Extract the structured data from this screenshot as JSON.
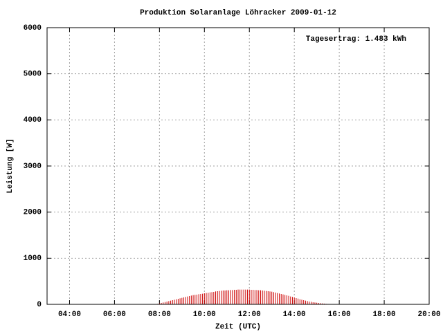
{
  "chart_data": {
    "type": "impulse",
    "title": "Produktion Solaranlage Löhracker 2009-01-12",
    "x_label": "Zeit (UTC)",
    "y_label": "Leistung [W]",
    "annotation": "Tagesertrag: 1.483 kWh",
    "color": "#cc0000",
    "grid": true,
    "xlim": [
      "03:00",
      "20:00"
    ],
    "xticks": [
      "04:00",
      "06:00",
      "08:00",
      "10:00",
      "12:00",
      "14:00",
      "16:00",
      "18:00",
      "20:00"
    ],
    "ylim": [
      0,
      6000
    ],
    "yticks": [
      0,
      1000,
      2000,
      3000,
      4000,
      5000,
      6000
    ],
    "x": [
      "07:55",
      "08:00",
      "08:05",
      "08:10",
      "08:15",
      "08:20",
      "08:25",
      "08:30",
      "08:35",
      "08:40",
      "08:45",
      "08:50",
      "08:55",
      "09:00",
      "09:05",
      "09:10",
      "09:15",
      "09:20",
      "09:25",
      "09:30",
      "09:35",
      "09:40",
      "09:45",
      "09:50",
      "09:55",
      "10:00",
      "10:05",
      "10:10",
      "10:15",
      "10:20",
      "10:25",
      "10:30",
      "10:35",
      "10:40",
      "10:45",
      "10:50",
      "10:55",
      "11:00",
      "11:05",
      "11:10",
      "11:15",
      "11:20",
      "11:25",
      "11:30",
      "11:35",
      "11:40",
      "11:45",
      "11:50",
      "11:55",
      "12:00",
      "12:05",
      "12:10",
      "12:15",
      "12:20",
      "12:25",
      "12:30",
      "12:35",
      "12:40",
      "12:45",
      "12:50",
      "12:55",
      "13:00",
      "13:05",
      "13:10",
      "13:15",
      "13:20",
      "13:25",
      "13:30",
      "13:35",
      "13:40",
      "13:45",
      "13:50",
      "13:55",
      "14:00",
      "14:05",
      "14:10",
      "14:15",
      "14:20",
      "14:25",
      "14:30",
      "14:35",
      "14:40",
      "14:45",
      "14:50",
      "14:55",
      "15:00",
      "15:05",
      "15:10",
      "15:15",
      "15:20",
      "15:25",
      "15:30",
      "15:35",
      "15:40"
    ],
    "values": [
      10,
      20,
      30,
      40,
      50,
      60,
      70,
      80,
      90,
      100,
      110,
      120,
      130,
      140,
      150,
      160,
      170,
      180,
      190,
      200,
      205,
      210,
      220,
      225,
      230,
      240,
      245,
      250,
      260,
      265,
      270,
      280,
      285,
      290,
      295,
      300,
      300,
      305,
      305,
      310,
      310,
      315,
      315,
      320,
      320,
      320,
      320,
      320,
      320,
      320,
      315,
      315,
      310,
      310,
      305,
      305,
      300,
      295,
      290,
      285,
      280,
      275,
      265,
      255,
      245,
      235,
      225,
      215,
      205,
      195,
      185,
      170,
      160,
      150,
      135,
      125,
      110,
      100,
      90,
      80,
      70,
      60,
      55,
      45,
      40,
      35,
      30,
      25,
      20,
      15,
      10,
      8,
      5,
      3
    ]
  }
}
